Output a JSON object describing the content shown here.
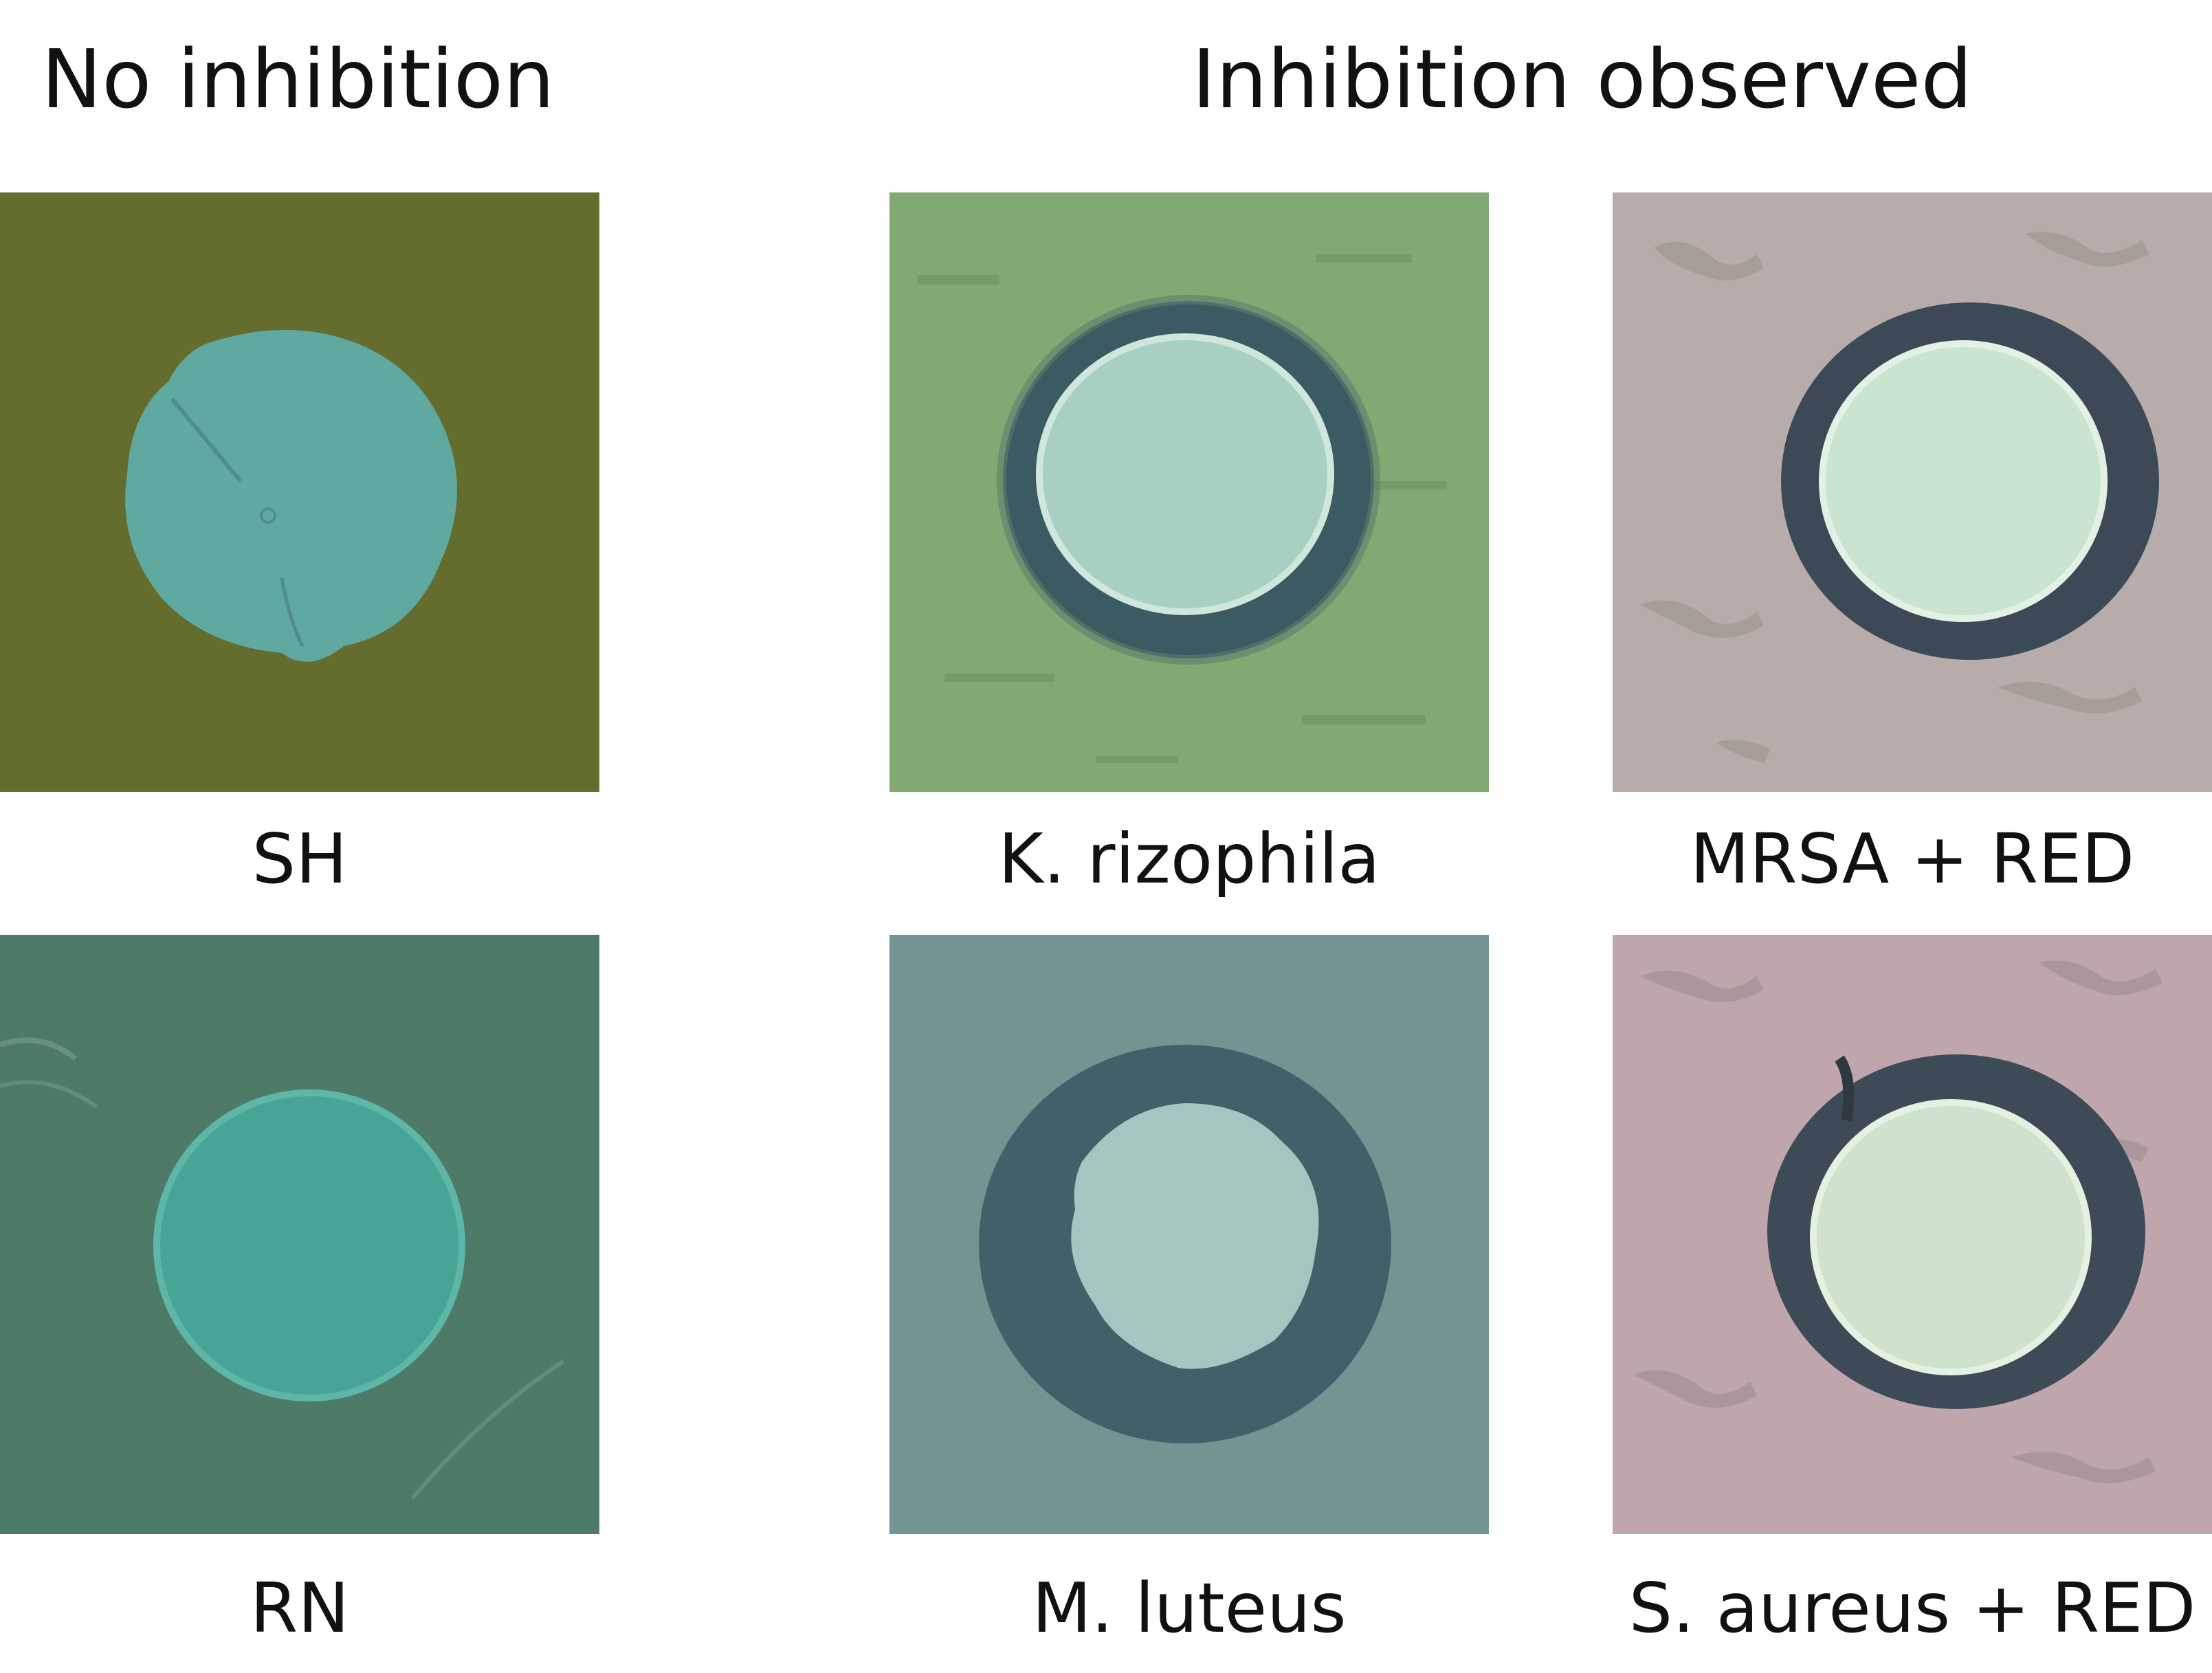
{
  "headings": {
    "left": "No inhibition",
    "right": "Inhibition observed"
  },
  "panels": [
    {
      "caption": "SH",
      "lawn": "#5f6a2c",
      "colony": "#5fa9a0",
      "halo": null
    },
    {
      "caption": "K. rizophila",
      "lawn": "#82a873",
      "colony": "#a7d0c2",
      "halo": "#3c5a62"
    },
    {
      "caption": "MRSA + RED",
      "lawn": "#b7aca9",
      "colony": "#c9e4cf",
      "halo": "#3c4a57"
    },
    {
      "caption": "RN",
      "lawn": "#4e7a68",
      "colony": "#48a596",
      "halo": null
    },
    {
      "caption": "M. luteus",
      "lawn": "#6a8f8e",
      "colony": "#a5c6c0",
      "halo": "#42606a"
    },
    {
      "caption": "S. aureus + RED",
      "lawn": "#bfa6ac",
      "colony": "#cde3cb",
      "halo": "#3d4b57"
    }
  ]
}
